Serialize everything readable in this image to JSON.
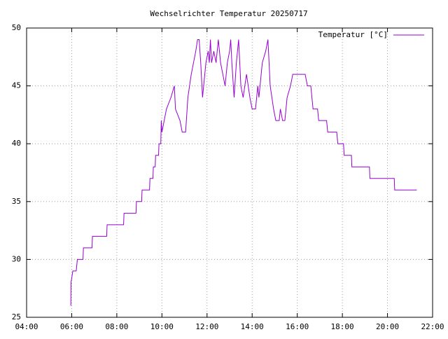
{
  "chart_data": {
    "type": "line",
    "title": "Wechselrichter Temperatur 20250717",
    "x": [
      5.96,
      5.97,
      6.05,
      6.2,
      6.25,
      6.5,
      6.52,
      6.9,
      6.92,
      7.55,
      7.57,
      8.3,
      8.32,
      8.85,
      8.87,
      9.1,
      9.12,
      9.45,
      9.47,
      9.6,
      9.62,
      9.7,
      9.72,
      9.85,
      9.87,
      9.95,
      9.97,
      10.0,
      10.1,
      10.2,
      10.4,
      10.55,
      10.6,
      10.8,
      10.9,
      11.05,
      11.15,
      11.3,
      11.4,
      11.5,
      11.58,
      11.65,
      11.72,
      11.8,
      11.9,
      11.95,
      12.05,
      12.1,
      12.15,
      12.2,
      12.3,
      12.4,
      12.5,
      12.6,
      12.7,
      12.8,
      12.9,
      13.0,
      13.05,
      13.1,
      13.2,
      13.3,
      13.4,
      13.5,
      13.6,
      13.75,
      13.9,
      14.0,
      14.15,
      14.25,
      14.3,
      14.45,
      14.6,
      14.7,
      14.8,
      14.95,
      15.05,
      15.2,
      15.25,
      15.35,
      15.45,
      15.55,
      15.7,
      15.8,
      16.35,
      16.45,
      16.6,
      16.65,
      16.7,
      16.9,
      16.95,
      17.3,
      17.35,
      17.75,
      17.8,
      18.05,
      18.08,
      18.4,
      18.42,
      19.2,
      19.22,
      20.3,
      20.32,
      21.3
    ],
    "series": [
      {
        "name": "Temperatur [°C]",
        "color": "#9400d3",
        "values": [
          26,
          28,
          29,
          29,
          30,
          30,
          31,
          31,
          32,
          32,
          33,
          33,
          34,
          34,
          35,
          35,
          36,
          36,
          37,
          37,
          38,
          38,
          39,
          39,
          40,
          40,
          42,
          41,
          42,
          43,
          44,
          45,
          43,
          42,
          41,
          41,
          44,
          46,
          47,
          48,
          49,
          49,
          47,
          44,
          46,
          47,
          48,
          47,
          49,
          47,
          48,
          47,
          49,
          47,
          46,
          45,
          47,
          48,
          49,
          47,
          44,
          47,
          49,
          45,
          44,
          46,
          44,
          43,
          43,
          45,
          44,
          47,
          48,
          49,
          45,
          43,
          42,
          42,
          43,
          42,
          42,
          44,
          45,
          46,
          46,
          45,
          45,
          44,
          43,
          43,
          42,
          42,
          41,
          41,
          40,
          40,
          39,
          39,
          38,
          38,
          37,
          37,
          36,
          36
        ]
      }
    ],
    "xlim": [
      4,
      22
    ],
    "xticks": [
      {
        "value": 4,
        "label": "04:00"
      },
      {
        "value": 6,
        "label": "06:00"
      },
      {
        "value": 8,
        "label": "08:00"
      },
      {
        "value": 10,
        "label": "10:00"
      },
      {
        "value": 12,
        "label": "12:00"
      },
      {
        "value": 14,
        "label": "14:00"
      },
      {
        "value": 16,
        "label": "16:00"
      },
      {
        "value": 18,
        "label": "18:00"
      },
      {
        "value": 20,
        "label": "20:00"
      },
      {
        "value": 22,
        "label": "22:00"
      }
    ],
    "ylim": [
      25,
      50
    ],
    "yticks": [
      25,
      30,
      35,
      40,
      45,
      50
    ],
    "grid": true,
    "legend": "top right"
  }
}
